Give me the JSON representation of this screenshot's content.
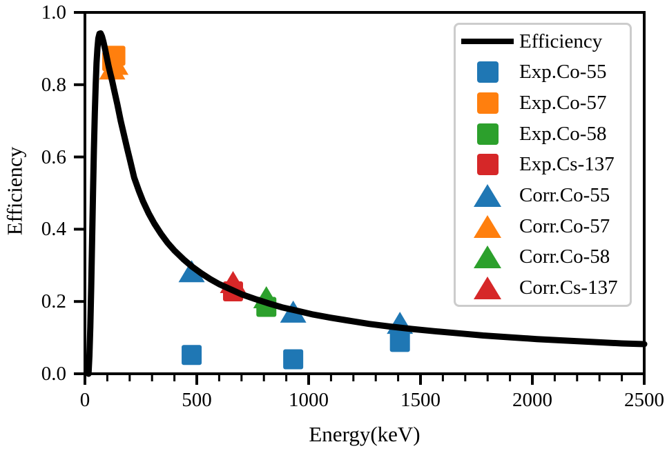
{
  "chart_data": {
    "type": "line+scatter",
    "title": "",
    "xlabel": "Energy(keV)",
    "ylabel": "Efficiency",
    "xlim": [
      0,
      2500
    ],
    "ylim": [
      0.0,
      1.0
    ],
    "x_tick_values": [
      0,
      500,
      1000,
      1500,
      2000,
      2500
    ],
    "x_tick_labels": [
      "0",
      "500",
      "1000",
      "1500",
      "2000",
      "2500"
    ],
    "x_minor_tick_step": 100,
    "y_tick_values": [
      0.0,
      0.2,
      0.4,
      0.6,
      0.8,
      1.0
    ],
    "y_tick_labels": [
      "0.0",
      "0.2",
      "0.4",
      "0.6",
      "0.8",
      "1.0"
    ],
    "grid": false,
    "legend_position": "upper right",
    "curve_series": {
      "name": "Efficiency",
      "color": "#000000",
      "line_width": 9,
      "points": [
        [
          16,
          0.0
        ],
        [
          20,
          0.05
        ],
        [
          24,
          0.13
        ],
        [
          28,
          0.24
        ],
        [
          32,
          0.37
        ],
        [
          36,
          0.5
        ],
        [
          40,
          0.62
        ],
        [
          44,
          0.72
        ],
        [
          48,
          0.8
        ],
        [
          52,
          0.86
        ],
        [
          56,
          0.9
        ],
        [
          60,
          0.928
        ],
        [
          65,
          0.941
        ],
        [
          70,
          0.942
        ],
        [
          76,
          0.934
        ],
        [
          82,
          0.92
        ],
        [
          90,
          0.898
        ],
        [
          98,
          0.874
        ],
        [
          106,
          0.851
        ],
        [
          114,
          0.83
        ],
        [
          122,
          0.81
        ],
        [
          130,
          0.787
        ],
        [
          145,
          0.745
        ],
        [
          160,
          0.7
        ],
        [
          175,
          0.66
        ],
        [
          190,
          0.62
        ],
        [
          200,
          0.595
        ],
        [
          220,
          0.543
        ],
        [
          240,
          0.508
        ],
        [
          260,
          0.477
        ],
        [
          285,
          0.444
        ],
        [
          310,
          0.416
        ],
        [
          340,
          0.387
        ],
        [
          370,
          0.362
        ],
        [
          400,
          0.341
        ],
        [
          440,
          0.317
        ],
        [
          480,
          0.296
        ],
        [
          520,
          0.278
        ],
        [
          560,
          0.262
        ],
        [
          600,
          0.248
        ],
        [
          650,
          0.234
        ],
        [
          700,
          0.22
        ],
        [
          760,
          0.207
        ],
        [
          820,
          0.195
        ],
        [
          880,
          0.184
        ],
        [
          950,
          0.174
        ],
        [
          1020,
          0.164
        ],
        [
          1100,
          0.155
        ],
        [
          1180,
          0.147
        ],
        [
          1270,
          0.138
        ],
        [
          1360,
          0.131
        ],
        [
          1460,
          0.124
        ],
        [
          1560,
          0.118
        ],
        [
          1670,
          0.112
        ],
        [
          1780,
          0.106
        ],
        [
          1900,
          0.101
        ],
        [
          2020,
          0.096
        ],
        [
          2140,
          0.092
        ],
        [
          2270,
          0.088
        ],
        [
          2400,
          0.084
        ],
        [
          2500,
          0.082
        ]
      ]
    },
    "scatter_series": [
      {
        "name": "Exp.Co-55",
        "marker": "square",
        "color": "#1f77b4",
        "points": [
          [
            477,
            0.052
          ],
          [
            931,
            0.04
          ],
          [
            1408,
            0.088
          ]
        ]
      },
      {
        "name": "Exp.Co-57",
        "marker": "square",
        "color": "#ff7f0e",
        "points": [
          [
            122,
            0.865
          ],
          [
            136,
            0.88
          ]
        ]
      },
      {
        "name": "Exp.Co-58",
        "marker": "square",
        "color": "#2ca02c",
        "points": [
          [
            811,
            0.185
          ]
        ]
      },
      {
        "name": "Exp.Cs-137",
        "marker": "square",
        "color": "#d62728",
        "points": [
          [
            662,
            0.228
          ]
        ]
      },
      {
        "name": "Corr.Co-55",
        "marker": "triangle",
        "color": "#1f77b4",
        "points": [
          [
            477,
            0.282
          ],
          [
            931,
            0.17
          ],
          [
            1408,
            0.139
          ]
        ]
      },
      {
        "name": "Corr.Co-57",
        "marker": "triangle",
        "color": "#ff7f0e",
        "points": [
          [
            122,
            0.843
          ],
          [
            136,
            0.856
          ]
        ]
      },
      {
        "name": "Corr.Co-58",
        "marker": "triangle",
        "color": "#2ca02c",
        "points": [
          [
            811,
            0.21
          ]
        ]
      },
      {
        "name": "Corr.Cs-137",
        "marker": "triangle",
        "color": "#d62728",
        "points": [
          [
            662,
            0.252
          ]
        ]
      }
    ]
  },
  "legend": {
    "items": [
      {
        "marker": "line",
        "color": "#000000",
        "label": "Efficiency"
      },
      {
        "marker": "square",
        "color": "#1f77b4",
        "label": "Exp.Co-55"
      },
      {
        "marker": "square",
        "color": "#ff7f0e",
        "label": "Exp.Co-57"
      },
      {
        "marker": "square",
        "color": "#2ca02c",
        "label": "Exp.Co-58"
      },
      {
        "marker": "square",
        "color": "#d62728",
        "label": "Exp.Cs-137"
      },
      {
        "marker": "triangle",
        "color": "#1f77b4",
        "label": "Corr.Co-55"
      },
      {
        "marker": "triangle",
        "color": "#ff7f0e",
        "label": "Corr.Co-57"
      },
      {
        "marker": "triangle",
        "color": "#2ca02c",
        "label": "Corr.Co-58"
      },
      {
        "marker": "triangle",
        "color": "#d62728",
        "label": "Corr.Cs-137"
      }
    ],
    "border_color": "#cccccc",
    "background": "#ffffff"
  },
  "colors": {
    "axes": "#000000",
    "curve": "#000000",
    "background": "#ffffff"
  }
}
